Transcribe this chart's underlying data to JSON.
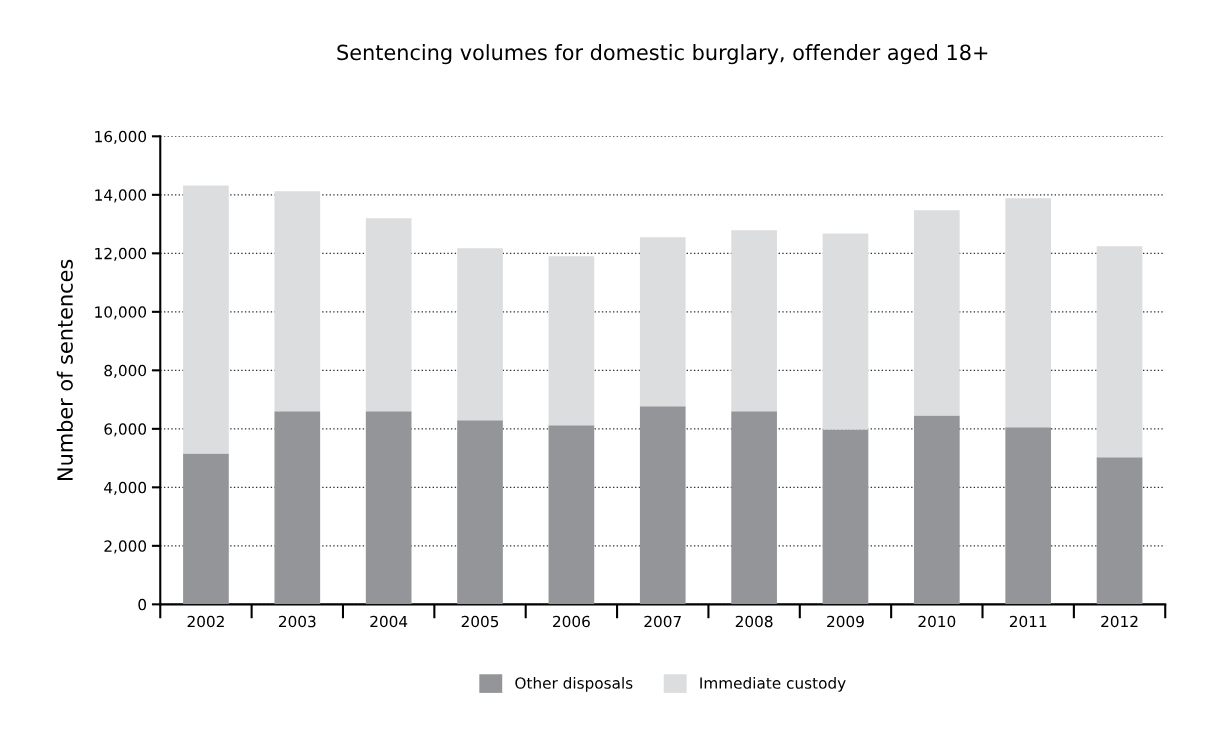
{
  "chart_data": {
    "type": "bar",
    "stacked": true,
    "title": "Sentencing volumes for domestic burglary, offender aged 18+",
    "ylabel": "Number of sentences",
    "categories": [
      "2002",
      "2003",
      "2004",
      "2005",
      "2006",
      "2007",
      "2008",
      "2009",
      "2010",
      "2011",
      "2012"
    ],
    "series": [
      {
        "name": "Other disposals",
        "color": "#939598",
        "values": [
          5160,
          6600,
          6600,
          6290,
          6120,
          6770,
          6600,
          5980,
          6460,
          6050,
          5030
        ]
      },
      {
        "name": "Immediate custody",
        "color": "#dcddde",
        "values": [
          9160,
          7520,
          6600,
          5880,
          5780,
          5780,
          6190,
          6700,
          7010,
          7830,
          7210
        ]
      }
    ],
    "ylim": [
      0,
      16000
    ],
    "yticks": [
      {
        "value": 0,
        "label": "0"
      },
      {
        "value": 2000,
        "label": "2,000"
      },
      {
        "value": 4000,
        "label": "4,000"
      },
      {
        "value": 6000,
        "label": "6,000"
      },
      {
        "value": 8000,
        "label": "8,000"
      },
      {
        "value": 10000,
        "label": "10,000"
      },
      {
        "value": 12000,
        "label": "12,000"
      },
      {
        "value": 14000,
        "label": "14,000"
      },
      {
        "value": 16000,
        "label": "16,000"
      }
    ],
    "grid": "y",
    "legend": "bottom"
  }
}
